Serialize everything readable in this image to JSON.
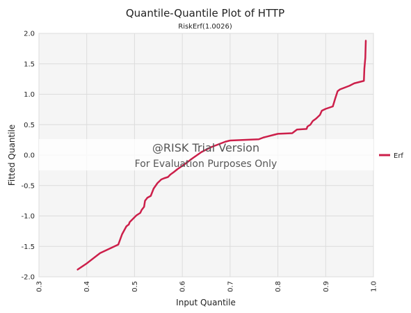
{
  "chart_data": {
    "type": "line",
    "title": "Quantile-Quantile Plot of HTTP",
    "subtitle": "RiskErf(1.0026)",
    "xlabel": "Input Quantile",
    "ylabel": "Fitted Quantile",
    "xlim": [
      0.3,
      1.0
    ],
    "ylim": [
      -2.0,
      2.0
    ],
    "x_ticks": [
      "0.3",
      "0.4",
      "0.5",
      "0.6",
      "0.7",
      "0.8",
      "0.9",
      "1.0"
    ],
    "y_ticks": [
      "2.0",
      "1.5",
      "1.0",
      "0.5",
      "0.0",
      "-0.5",
      "-1.0",
      "-1.5",
      "-2.0"
    ],
    "grid": true,
    "legend_position": "right",
    "series": [
      {
        "name": "Erf",
        "color": "#cc1f4a",
        "x": [
          0.381,
          0.4,
          0.428,
          0.466,
          0.474,
          0.483,
          0.488,
          0.49,
          0.504,
          0.512,
          0.515,
          0.52,
          0.522,
          0.527,
          0.534,
          0.54,
          0.548,
          0.556,
          0.562,
          0.57,
          0.575,
          0.582,
          0.59,
          0.605,
          0.62,
          0.64,
          0.66,
          0.68,
          0.69,
          0.7,
          0.73,
          0.76,
          0.77,
          0.79,
          0.8,
          0.83,
          0.84,
          0.86,
          0.862,
          0.868,
          0.873,
          0.88,
          0.888,
          0.892,
          0.9,
          0.915,
          0.92,
          0.925,
          0.93,
          0.95,
          0.96,
          0.97,
          0.98,
          0.981,
          0.983,
          0.984
        ],
        "y": [
          -1.88,
          -1.78,
          -1.61,
          -1.47,
          -1.3,
          -1.17,
          -1.14,
          -1.1,
          -0.99,
          -0.95,
          -0.9,
          -0.85,
          -0.75,
          -0.7,
          -0.67,
          -0.55,
          -0.46,
          -0.4,
          -0.38,
          -0.36,
          -0.32,
          -0.28,
          -0.23,
          -0.15,
          -0.06,
          0.05,
          0.13,
          0.19,
          0.22,
          0.24,
          0.25,
          0.26,
          0.29,
          0.33,
          0.35,
          0.36,
          0.42,
          0.43,
          0.47,
          0.5,
          0.56,
          0.6,
          0.66,
          0.73,
          0.76,
          0.8,
          0.93,
          1.05,
          1.08,
          1.14,
          1.18,
          1.2,
          1.22,
          1.42,
          1.6,
          1.88
        ]
      }
    ],
    "watermark": {
      "line1": "@RISK Trial Version",
      "line2": "For Evaluation Purposes Only"
    }
  }
}
